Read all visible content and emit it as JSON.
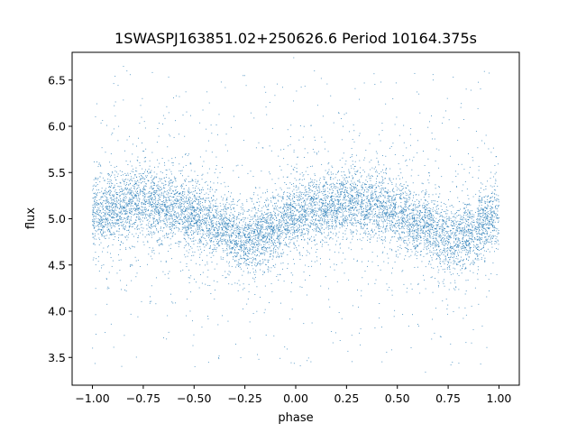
{
  "chart_data": {
    "type": "scatter",
    "title": "1SWASPJ163851.02+250626.6 Period 10164.375s",
    "xlabel": "phase",
    "ylabel": "flux",
    "xlim": [
      -1.1,
      1.1
    ],
    "ylim": [
      3.2,
      6.8
    ],
    "xticks": [
      -1.0,
      -0.75,
      -0.5,
      -0.25,
      0.0,
      0.25,
      0.5,
      0.75,
      1.0
    ],
    "xtick_labels": [
      "−1.00",
      "−0.75",
      "−0.50",
      "−0.25",
      "0.00",
      "0.25",
      "0.50",
      "0.75",
      "1.00"
    ],
    "yticks": [
      3.5,
      4.0,
      4.5,
      5.0,
      5.5,
      6.0,
      6.5
    ],
    "ytick_labels": [
      "3.5",
      "4.0",
      "4.5",
      "5.0",
      "5.5",
      "6.0",
      "6.5"
    ],
    "grid": false,
    "legend": "none",
    "series": [
      {
        "color": "#1f77b4",
        "x_range": [
          -1.0,
          1.0
        ],
        "x_repeat_period": 1.0,
        "trend": {
          "phase": [
            -1.0,
            -0.875,
            -0.75,
            -0.625,
            -0.5,
            -0.375,
            -0.25,
            -0.125,
            0.0,
            0.125,
            0.25,
            0.375,
            0.5,
            0.625,
            0.75,
            0.875,
            1.0
          ],
          "flux": [
            5.05,
            5.12,
            5.18,
            5.14,
            5.05,
            4.92,
            4.75,
            4.88,
            5.05,
            5.12,
            5.18,
            5.14,
            5.05,
            4.92,
            4.75,
            4.88,
            5.05
          ]
        },
        "core_scatter": 0.18,
        "outlier_range": [
          3.4,
          6.6
        ]
      }
    ]
  }
}
